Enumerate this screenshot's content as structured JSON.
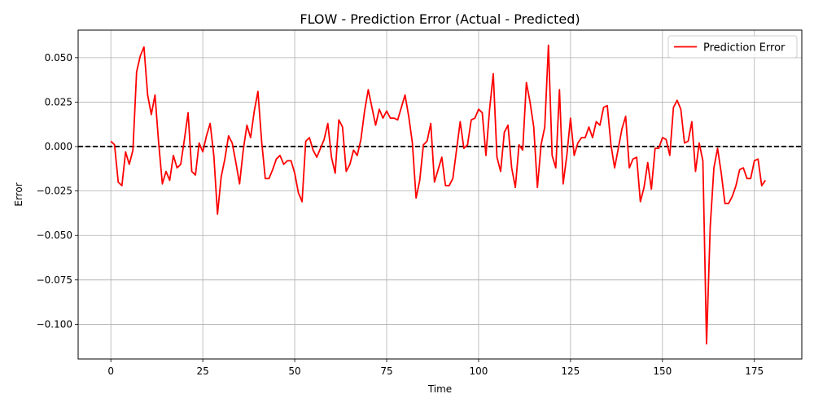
{
  "chart_data": {
    "type": "line",
    "title": "FLOW - Prediction Error (Actual - Predicted)",
    "xlabel": "Time",
    "ylabel": "Error",
    "xlim": [
      -8.9,
      187.9
    ],
    "ylim": [
      -0.1195,
      0.0655
    ],
    "xticks": [
      0,
      25,
      50,
      75,
      100,
      125,
      150,
      175
    ],
    "xtick_labels": [
      "0",
      "25",
      "50",
      "75",
      "100",
      "125",
      "150",
      "175"
    ],
    "yticks": [
      -0.1,
      -0.075,
      -0.05,
      -0.025,
      0.0,
      0.025,
      0.05
    ],
    "ytick_labels": [
      "−0.100",
      "−0.075",
      "−0.050",
      "−0.025",
      "0.000",
      "0.025",
      "0.050"
    ],
    "grid": true,
    "legend_position": "top-right",
    "reference_line": {
      "y": 0,
      "style": "dashed",
      "color": "#000000"
    },
    "series": [
      {
        "name": "Prediction Error",
        "color": "#ff0000",
        "x": [
          0,
          1,
          2,
          3,
          4,
          5,
          6,
          7,
          8,
          9,
          10,
          11,
          12,
          13,
          14,
          15,
          16,
          17,
          18,
          19,
          20,
          21,
          22,
          23,
          24,
          25,
          26,
          27,
          28,
          29,
          30,
          31,
          32,
          33,
          34,
          35,
          36,
          37,
          38,
          39,
          40,
          41,
          42,
          43,
          44,
          45,
          46,
          47,
          48,
          49,
          50,
          51,
          52,
          53,
          54,
          55,
          56,
          57,
          58,
          59,
          60,
          61,
          62,
          63,
          64,
          65,
          66,
          67,
          68,
          69,
          70,
          71,
          72,
          73,
          74,
          75,
          76,
          77,
          78,
          79,
          80,
          81,
          82,
          83,
          84,
          85,
          86,
          87,
          88,
          89,
          90,
          91,
          92,
          93,
          94,
          95,
          96,
          97,
          98,
          99,
          100,
          101,
          102,
          103,
          104,
          105,
          106,
          107,
          108,
          109,
          110,
          111,
          112,
          113,
          114,
          115,
          116,
          117,
          118,
          119,
          120,
          121,
          122,
          123,
          124,
          125,
          126,
          127,
          128,
          129,
          130,
          131,
          132,
          133,
          134,
          135,
          136,
          137,
          138,
          139,
          140,
          141,
          142,
          143,
          144,
          145,
          146,
          147,
          148,
          149,
          150,
          151,
          152,
          153,
          154,
          155,
          156,
          157,
          158,
          159,
          160,
          161,
          162,
          163,
          164,
          165,
          166,
          167,
          168,
          169,
          170,
          171,
          172,
          173,
          174,
          175,
          176,
          177,
          178
        ],
        "values": [
          0.003,
          0.001,
          -0.02,
          -0.022,
          -0.003,
          -0.01,
          -0.002,
          0.042,
          0.051,
          0.056,
          0.029,
          0.018,
          0.029,
          0.002,
          -0.021,
          -0.014,
          -0.019,
          -0.005,
          -0.012,
          -0.01,
          0.004,
          0.019,
          -0.014,
          -0.016,
          0.002,
          -0.003,
          0.006,
          0.013,
          -0.005,
          -0.038,
          -0.017,
          -0.007,
          0.006,
          0.002,
          -0.009,
          -0.021,
          -0.002,
          0.012,
          0.005,
          0.02,
          0.031,
          0.003,
          -0.018,
          -0.018,
          -0.013,
          -0.007,
          -0.005,
          -0.01,
          -0.008,
          -0.008,
          -0.015,
          -0.026,
          -0.031,
          0.003,
          0.005,
          -0.002,
          -0.006,
          -0.001,
          0.004,
          0.013,
          -0.006,
          -0.015,
          0.015,
          0.011,
          -0.014,
          -0.01,
          -0.002,
          -0.005,
          0.004,
          0.02,
          0.032,
          0.022,
          0.012,
          0.021,
          0.016,
          0.02,
          0.016,
          0.016,
          0.015,
          0.022,
          0.029,
          0.017,
          0.002,
          -0.029,
          -0.019,
          0.001,
          0.003,
          0.013,
          -0.02,
          -0.013,
          -0.006,
          -0.022,
          -0.022,
          -0.018,
          -0.002,
          0.014,
          -0.001,
          0.001,
          0.015,
          0.016,
          0.021,
          0.019,
          -0.005,
          0.021,
          0.041,
          -0.006,
          -0.014,
          0.008,
          0.012,
          -0.012,
          -0.023,
          0.001,
          -0.002,
          0.036,
          0.025,
          0.011,
          -0.023,
          0.001,
          0.011,
          0.057,
          -0.005,
          -0.012,
          0.032,
          -0.021,
          -0.005,
          0.016,
          -0.005,
          0.002,
          0.005,
          0.005,
          0.011,
          0.005,
          0.014,
          0.012,
          0.022,
          0.023,
          0.001,
          -0.012,
          -0.001,
          0.01,
          0.017,
          -0.012,
          -0.007,
          -0.006,
          -0.031,
          -0.023,
          -0.009,
          -0.024,
          -0.001,
          -0.001,
          0.005,
          0.004,
          -0.005,
          0.022,
          0.026,
          0.021,
          0.002,
          0.003,
          0.014,
          -0.014,
          0.002,
          -0.008,
          -0.111,
          -0.045,
          -0.012,
          -0.001,
          -0.015,
          -0.032,
          -0.032,
          -0.028,
          -0.022,
          -0.013,
          -0.012,
          -0.018,
          -0.018,
          -0.008,
          -0.007,
          -0.022,
          -0.019
        ]
      }
    ]
  }
}
